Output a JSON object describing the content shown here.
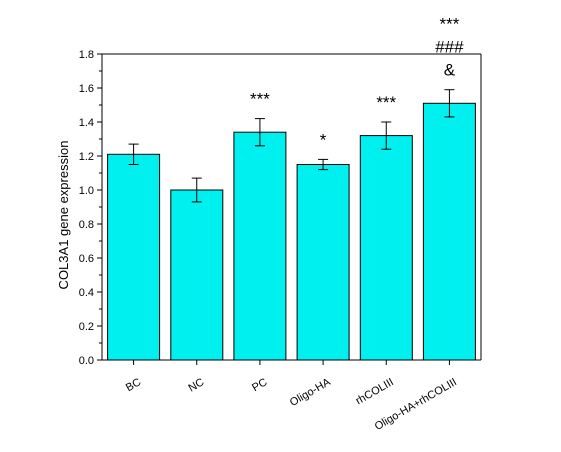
{
  "chart_data": {
    "type": "bar",
    "ylabel": "COL3A1 gene expression",
    "xlabel": "",
    "ylim": [
      0,
      1.8
    ],
    "yticks": [
      "0.0",
      "0.2",
      "0.4",
      "0.6",
      "0.8",
      "1.0",
      "1.2",
      "1.4",
      "1.6",
      "1.8"
    ],
    "grid": false,
    "bar_color": "#00f0f0",
    "categories": [
      "BC",
      "NC",
      "PC",
      "Oligo-HA",
      "rhCOLIII",
      "Oligo-HA+rhCOLIII"
    ],
    "values": [
      1.21,
      1.0,
      1.34,
      1.15,
      1.32,
      1.51
    ],
    "errors": [
      0.06,
      0.07,
      0.08,
      0.03,
      0.08,
      0.08
    ],
    "annotations": [
      [],
      [],
      [
        "***"
      ],
      [
        "*"
      ],
      [
        "***"
      ],
      [
        "***",
        "###",
        "&"
      ]
    ]
  }
}
